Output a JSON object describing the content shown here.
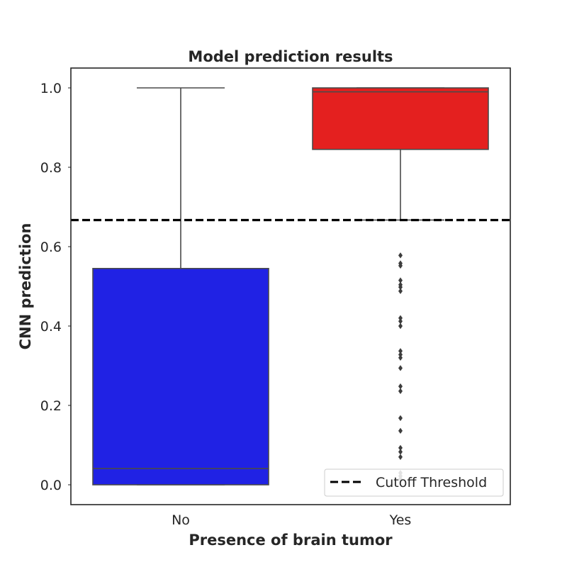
{
  "chart_data": {
    "type": "box",
    "title": "Model prediction results",
    "xlabel": "Presence of brain tumor",
    "ylabel": "CNN prediction",
    "ylim": [
      -0.05,
      1.05
    ],
    "yticks": [
      0.0,
      0.2,
      0.4,
      0.6,
      0.8,
      1.0
    ],
    "ytick_labels": [
      "0.0",
      "0.2",
      "0.4",
      "0.6",
      "0.8",
      "1.0"
    ],
    "grid": false,
    "legend": {
      "position": "lower-right",
      "entries": [
        {
          "label": "Cutoff Threshold",
          "style": "dashed",
          "color": "#000000"
        }
      ]
    },
    "threshold": {
      "y": 0.667,
      "label": "Cutoff Threshold"
    },
    "categories": [
      "No",
      "Yes"
    ],
    "boxes": [
      {
        "category": "No",
        "color": "#2022e4",
        "q1": 0.0,
        "median": 0.041,
        "q3": 0.545,
        "whisker_low": 0.0,
        "whisker_high": 1.0,
        "outliers": []
      },
      {
        "category": "Yes",
        "color": "#e4201f",
        "q1": 0.845,
        "median": 0.99,
        "q3": 1.0,
        "whisker_low": 0.667,
        "whisker_high": 1.0,
        "outliers": [
          0.578,
          0.558,
          0.552,
          0.515,
          0.504,
          0.498,
          0.488,
          0.42,
          0.412,
          0.4,
          0.337,
          0.328,
          0.32,
          0.294,
          0.248,
          0.236,
          0.168,
          0.136,
          0.093,
          0.083,
          0.07,
          0.03,
          0.022,
          0.015
        ]
      }
    ]
  }
}
